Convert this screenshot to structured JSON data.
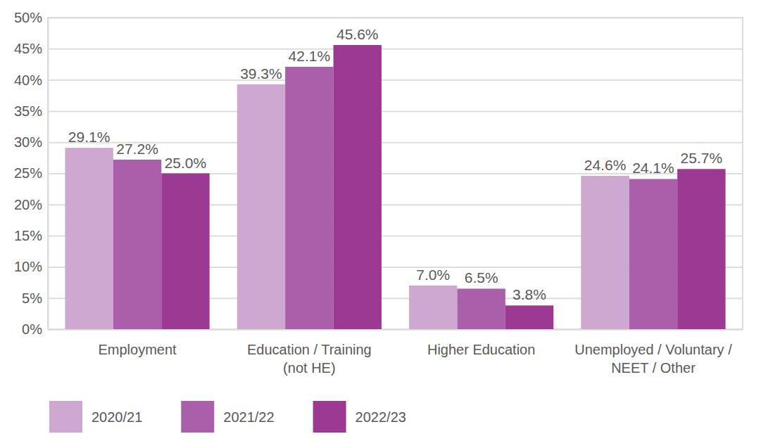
{
  "chart_data": {
    "type": "bar",
    "categories": [
      "Employment",
      "Education / Training\n(not HE)",
      "Higher Education",
      "Unemployed / Voluntary /\nNEET / Other"
    ],
    "series": [
      {
        "name": "2020/21",
        "color": "#cea8d0",
        "values": [
          29.1,
          39.3,
          7.0,
          24.6
        ],
        "value_labels": [
          "29.1%",
          "39.3%",
          "7.0%",
          "24.6%"
        ]
      },
      {
        "name": "2021/22",
        "color": "#aa5faa",
        "values": [
          27.2,
          42.1,
          6.5,
          24.1
        ],
        "value_labels": [
          "27.2%",
          "42.1%",
          "6.5%",
          "24.1%"
        ]
      },
      {
        "name": "2022/23",
        "color": "#9c3993",
        "values": [
          25.0,
          45.6,
          3.8,
          25.7
        ],
        "value_labels": [
          "25.0%",
          "45.6%",
          "3.8%",
          "25.7%"
        ]
      }
    ],
    "ylim": [
      0,
      50
    ],
    "yticks": [
      {
        "value": 0,
        "label": "0%"
      },
      {
        "value": 5,
        "label": "5%"
      },
      {
        "value": 10,
        "label": "10%"
      },
      {
        "value": 15,
        "label": "15%"
      },
      {
        "value": 20,
        "label": "20%"
      },
      {
        "value": 25,
        "label": "25%"
      },
      {
        "value": 30,
        "label": "30%"
      },
      {
        "value": 35,
        "label": "35%"
      },
      {
        "value": 40,
        "label": "40%"
      },
      {
        "value": 45,
        "label": "45%"
      },
      {
        "value": 50,
        "label": "50%"
      }
    ],
    "grid": true,
    "legend": "bottom left",
    "data_labels": true
  }
}
